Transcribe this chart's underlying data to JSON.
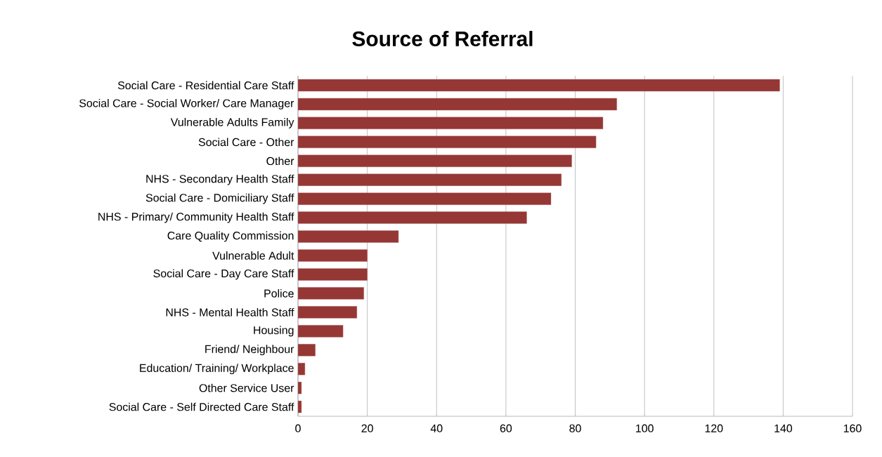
{
  "chart_data": {
    "type": "bar",
    "orientation": "horizontal",
    "title": "Source of Referral",
    "categories": [
      "Social Care - Residential Care Staff",
      "Social Care - Social Worker/ Care Manager",
      "Vulnerable Adults Family",
      "Social Care - Other",
      "Other",
      "NHS - Secondary Health Staff",
      "Social Care - Domiciliary Staff",
      "NHS - Primary/ Community Health Staff",
      "Care Quality Commission",
      "Vulnerable Adult",
      "Social Care - Day Care Staff",
      "Police",
      "NHS - Mental Health Staff",
      "Housing",
      "Friend/ Neighbour",
      "Education/ Training/ Workplace",
      "Other Service User",
      "Social Care - Self Directed Care Staff"
    ],
    "values": [
      139,
      92,
      88,
      86,
      79,
      76,
      73,
      66,
      29,
      20,
      20,
      19,
      17,
      13,
      5,
      2,
      1,
      1
    ],
    "color": "#953735",
    "xlim": [
      0,
      160
    ],
    "xticks": [
      0,
      20,
      40,
      60,
      80,
      100,
      120,
      140,
      160
    ],
    "grid": "x"
  }
}
